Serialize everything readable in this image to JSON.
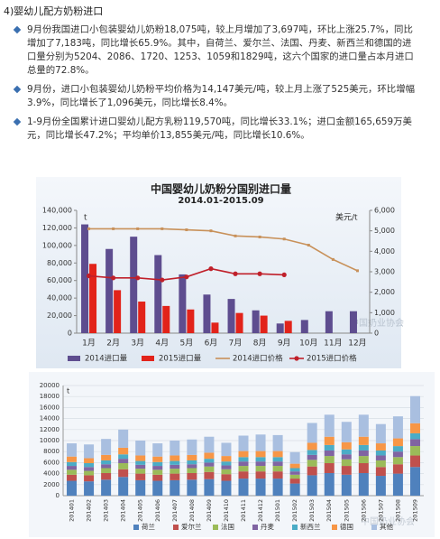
{
  "heading": "4)婴幼儿配方奶粉进口",
  "bullets": [
    "9月份我国进口小包装婴幼儿奶粉18,075吨，较上月增加了3,697吨，环比上涨25.7%，同比增加了7,183吨，同比增长65.9%。其中，自荷兰、爱尔兰、法国、丹麦、新西兰和德国的进口量分别为5204、2086、1720、1253、1059和1829吨，这六个国家的进口量占本月进口总量的72.8%。",
    "9月份，进口小包装婴幼儿奶粉平均价格为14,147美元/吨，较上月上涨了525美元，环比增幅3.9%，同比增长了1,096美元，同比增长8.4%。",
    "1-9月份全国累计进口婴幼儿配方乳粉119,570吨，同比增长33.1%；进口金额165,659万美元，同比增长47.2%；平均单价13,855美元/吨，同比增长10.6%。"
  ],
  "watermark": "中国奶业协会",
  "chart_data": [
    {
      "type": "bar",
      "title": "中国婴幼儿奶粉分国别进口量",
      "subtitle": "2014.01-2015.09",
      "y_label": "t",
      "y2_label": "美元/t",
      "categories": [
        "1月",
        "2月",
        "3月",
        "4月",
        "5月",
        "6月",
        "7月",
        "8月",
        "9月",
        "10月",
        "11月",
        "12月"
      ],
      "series": [
        {
          "name": "2014进口量",
          "type": "bar",
          "color": "#5e4d8f",
          "values": [
            124000,
            96000,
            110000,
            89000,
            67000,
            44000,
            39000,
            26000,
            11000,
            15000,
            25000,
            25000
          ]
        },
        {
          "name": "2015进口量",
          "type": "bar",
          "color": "#e2231a",
          "values": [
            79000,
            49000,
            36000,
            31000,
            27000,
            12000,
            23000,
            20000,
            14000,
            null,
            null,
            null
          ]
        },
        {
          "name": "2014进口价格",
          "type": "line",
          "axis": "y2",
          "color": "#c8915a",
          "values": [
            5100,
            5100,
            5100,
            5100,
            5050,
            5000,
            4750,
            4700,
            4600,
            4300,
            3600,
            3050
          ]
        },
        {
          "name": "2015进口价格",
          "type": "line",
          "axis": "y2",
          "color": "#c0202a",
          "marker": true,
          "values": [
            2800,
            2700,
            2700,
            2600,
            2750,
            3150,
            2900,
            2900,
            2850,
            null,
            null,
            null
          ]
        }
      ],
      "ylim": [
        0,
        140000
      ],
      "yticks": [
        0,
        {
          "value": 20000,
          "label": "20,000"
        },
        {
          "value": 40000,
          "label": "40,000"
        },
        {
          "value": 60000,
          "label": "60,000"
        },
        {
          "value": 80000,
          "label": "80,000"
        },
        {
          "value": 100000,
          "label": "100,000"
        },
        {
          "value": 120000,
          "label": "120,000"
        },
        {
          "value": 140000,
          "label": "140,000"
        }
      ],
      "y2lim": [
        0,
        6000
      ],
      "y2ticks": [
        0,
        {
          "value": 1000,
          "label": "1,000"
        },
        {
          "value": 2000,
          "label": "2,000"
        },
        {
          "value": 3000,
          "label": "3,000"
        },
        {
          "value": 4000,
          "label": "4,000"
        },
        {
          "value": 5000,
          "label": "5,000"
        },
        {
          "value": 6000,
          "label": "6,000"
        }
      ],
      "grid": false,
      "legend": "bottom"
    },
    {
      "type": "stacked-bar",
      "y_label": "t",
      "categories": [
        "201401",
        "201402",
        "201403",
        "201404",
        "201405",
        "201406",
        "201407",
        "201408",
        "201409",
        "201410",
        "201411",
        "201412",
        "201501",
        "201502",
        "201503",
        "201504",
        "201505",
        "201506",
        "201507",
        "201508",
        "201509"
      ],
      "series": [
        {
          "name": "荷兰",
          "color": "#4f81bd",
          "values": [
            2700,
            2600,
            2900,
            3400,
            2800,
            2700,
            2800,
            2900,
            3000,
            2700,
            3100,
            3100,
            3100,
            2200,
            3700,
            4100,
            3800,
            4100,
            3600,
            4000,
            5204
          ]
        },
        {
          "name": "爱尔兰",
          "color": "#c0504d",
          "values": [
            1100,
            1100,
            1200,
            1400,
            1200,
            1100,
            1200,
            1200,
            1300,
            1200,
            1300,
            1300,
            1300,
            900,
            1600,
            1800,
            1600,
            1800,
            1600,
            1700,
            2086
          ]
        },
        {
          "name": "法国",
          "color": "#9bbb59",
          "values": [
            900,
            800,
            900,
            1100,
            900,
            900,
            900,
            900,
            1000,
            900,
            1000,
            1000,
            1000,
            700,
            1200,
            1300,
            1200,
            1300,
            1200,
            1300,
            1720
          ]
        },
        {
          "name": "丹麦",
          "color": "#8064a2",
          "values": [
            700,
            700,
            700,
            800,
            700,
            700,
            700,
            700,
            700,
            700,
            800,
            800,
            800,
            600,
            900,
            1000,
            900,
            1000,
            900,
            1000,
            1253
          ]
        },
        {
          "name": "新西兰",
          "color": "#4bacc6",
          "values": [
            700,
            700,
            700,
            800,
            700,
            700,
            700,
            700,
            700,
            700,
            800,
            800,
            800,
            600,
            900,
            1000,
            900,
            1000,
            900,
            1000,
            1059
          ]
        },
        {
          "name": "德国",
          "color": "#f79646",
          "values": [
            1000,
            900,
            1000,
            1200,
            1000,
            1000,
            1000,
            1000,
            1100,
            1000,
            1100,
            1100,
            1100,
            800,
            1300,
            1500,
            1300,
            1500,
            1300,
            1400,
            1829
          ]
        },
        {
          "name": "其他",
          "color": "#a9bfe0",
          "values": [
            2400,
            2500,
            2900,
            3300,
            2700,
            2400,
            2700,
            2800,
            2900,
            2400,
            2800,
            3000,
            2900,
            2100,
            3600,
            4000,
            3700,
            4000,
            3500,
            4000,
            4924
          ]
        }
      ],
      "ylim": [
        0,
        20000
      ],
      "yticks": [
        0,
        2000,
        4000,
        6000,
        8000,
        10000,
        12000,
        14000,
        16000,
        18000,
        20000
      ],
      "grid": true,
      "legend": "bottom"
    }
  ]
}
